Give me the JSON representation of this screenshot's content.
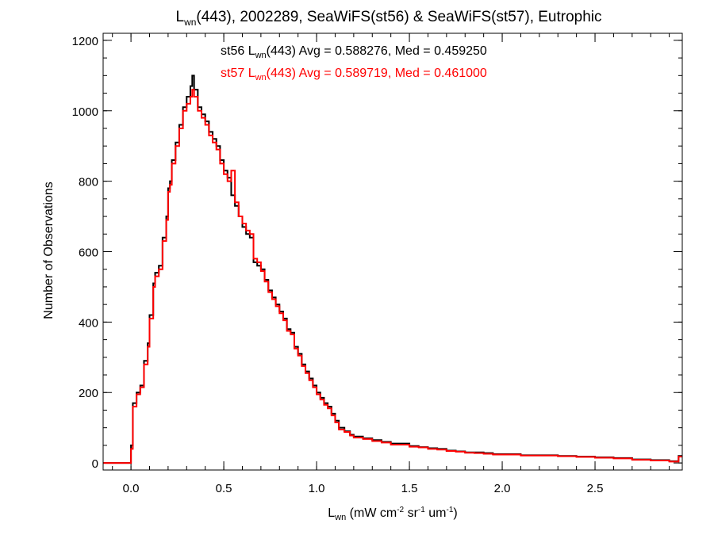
{
  "chart_data": {
    "type": "histogram",
    "title": {
      "pre": "L",
      "sub": "wn",
      "post": "(443), 2002289, SeaWiFS(st56) & SeaWiFS(st57), Eutrophic"
    },
    "xlabel": {
      "main": "L",
      "sub": "wn",
      "units_pre": " (mW cm",
      "exp1": "-2",
      "mid1": " sr",
      "exp2": "-1",
      "mid2": " um",
      "exp3": "-1",
      "end": ")"
    },
    "ylabel": "Number of Observations",
    "xlim": [
      -0.15,
      2.97
    ],
    "ylim": [
      -20,
      1220
    ],
    "xticks": [
      0.0,
      0.5,
      1.0,
      1.5,
      2.0,
      2.5
    ],
    "xtick_labels": [
      "0.0",
      "0.5",
      "1.0",
      "1.5",
      "2.0",
      "2.5"
    ],
    "yticks": [
      0,
      200,
      400,
      600,
      800,
      1000,
      1200
    ],
    "ytick_labels": [
      "0",
      "200",
      "400",
      "600",
      "800",
      "1000",
      "1200"
    ],
    "x_minor_step": 0.1,
    "y_minor_step": 50,
    "legend_placement": "top-center",
    "series": [
      {
        "name": "st56",
        "color": "#000000",
        "label": {
          "pre": "st56 L",
          "sub": "wn",
          "post": "(443) Avg = 0.588276, Med = 0.459250"
        },
        "points": [
          [
            -0.15,
            0
          ],
          [
            -0.02,
            0
          ],
          [
            0.0,
            50
          ],
          [
            0.01,
            170
          ],
          [
            0.03,
            200
          ],
          [
            0.05,
            220
          ],
          [
            0.07,
            290
          ],
          [
            0.09,
            340
          ],
          [
            0.1,
            420
          ],
          [
            0.12,
            510
          ],
          [
            0.13,
            540
          ],
          [
            0.15,
            560
          ],
          [
            0.17,
            640
          ],
          [
            0.19,
            700
          ],
          [
            0.2,
            780
          ],
          [
            0.21,
            800
          ],
          [
            0.22,
            860
          ],
          [
            0.24,
            910
          ],
          [
            0.26,
            960
          ],
          [
            0.28,
            1010
          ],
          [
            0.3,
            1040
          ],
          [
            0.32,
            1070
          ],
          [
            0.33,
            1100
          ],
          [
            0.34,
            1060
          ],
          [
            0.36,
            1010
          ],
          [
            0.38,
            990
          ],
          [
            0.4,
            970
          ],
          [
            0.42,
            940
          ],
          [
            0.44,
            920
          ],
          [
            0.46,
            900
          ],
          [
            0.48,
            860
          ],
          [
            0.5,
            830
          ],
          [
            0.52,
            810
          ],
          [
            0.54,
            760
          ],
          [
            0.56,
            730
          ],
          [
            0.58,
            700
          ],
          [
            0.6,
            670
          ],
          [
            0.62,
            650
          ],
          [
            0.64,
            640
          ],
          [
            0.66,
            570
          ],
          [
            0.68,
            560
          ],
          [
            0.7,
            550
          ],
          [
            0.72,
            520
          ],
          [
            0.74,
            490
          ],
          [
            0.76,
            470
          ],
          [
            0.78,
            450
          ],
          [
            0.8,
            430
          ],
          [
            0.82,
            410
          ],
          [
            0.84,
            380
          ],
          [
            0.86,
            370
          ],
          [
            0.88,
            330
          ],
          [
            0.9,
            310
          ],
          [
            0.92,
            280
          ],
          [
            0.94,
            260
          ],
          [
            0.96,
            240
          ],
          [
            0.98,
            220
          ],
          [
            1.0,
            200
          ],
          [
            1.02,
            185
          ],
          [
            1.04,
            170
          ],
          [
            1.06,
            160
          ],
          [
            1.08,
            140
          ],
          [
            1.1,
            120
          ],
          [
            1.12,
            100
          ],
          [
            1.15,
            90
          ],
          [
            1.18,
            80
          ],
          [
            1.2,
            75
          ],
          [
            1.25,
            70
          ],
          [
            1.3,
            65
          ],
          [
            1.35,
            60
          ],
          [
            1.4,
            55
          ],
          [
            1.45,
            55
          ],
          [
            1.5,
            48
          ],
          [
            1.55,
            45
          ],
          [
            1.6,
            42
          ],
          [
            1.65,
            40
          ],
          [
            1.7,
            35
          ],
          [
            1.75,
            33
          ],
          [
            1.8,
            30
          ],
          [
            1.85,
            30
          ],
          [
            1.9,
            28
          ],
          [
            1.95,
            25
          ],
          [
            2.0,
            25
          ],
          [
            2.1,
            22
          ],
          [
            2.2,
            22
          ],
          [
            2.3,
            20
          ],
          [
            2.4,
            18
          ],
          [
            2.5,
            16
          ],
          [
            2.6,
            14
          ],
          [
            2.7,
            10
          ],
          [
            2.8,
            8
          ],
          [
            2.9,
            5
          ],
          [
            2.95,
            20
          ]
        ]
      },
      {
        "name": "st57",
        "color": "#ff0000",
        "label": {
          "pre": "st57 L",
          "sub": "wn",
          "post": "(443) Avg = 0.589719, Med = 0.461000"
        },
        "points": [
          [
            -0.15,
            0
          ],
          [
            -0.02,
            0
          ],
          [
            0.0,
            40
          ],
          [
            0.01,
            160
          ],
          [
            0.03,
            195
          ],
          [
            0.05,
            215
          ],
          [
            0.07,
            280
          ],
          [
            0.09,
            330
          ],
          [
            0.1,
            410
          ],
          [
            0.12,
            500
          ],
          [
            0.13,
            530
          ],
          [
            0.15,
            550
          ],
          [
            0.17,
            630
          ],
          [
            0.19,
            690
          ],
          [
            0.2,
            770
          ],
          [
            0.21,
            790
          ],
          [
            0.22,
            850
          ],
          [
            0.24,
            900
          ],
          [
            0.26,
            950
          ],
          [
            0.28,
            1000
          ],
          [
            0.3,
            1020
          ],
          [
            0.32,
            1040
          ],
          [
            0.33,
            1060
          ],
          [
            0.34,
            1040
          ],
          [
            0.36,
            1000
          ],
          [
            0.38,
            980
          ],
          [
            0.4,
            960
          ],
          [
            0.42,
            930
          ],
          [
            0.44,
            910
          ],
          [
            0.46,
            890
          ],
          [
            0.48,
            850
          ],
          [
            0.5,
            820
          ],
          [
            0.52,
            800
          ],
          [
            0.54,
            830
          ],
          [
            0.56,
            740
          ],
          [
            0.58,
            700
          ],
          [
            0.6,
            680
          ],
          [
            0.62,
            660
          ],
          [
            0.64,
            650
          ],
          [
            0.66,
            580
          ],
          [
            0.68,
            570
          ],
          [
            0.7,
            545
          ],
          [
            0.72,
            515
          ],
          [
            0.74,
            485
          ],
          [
            0.76,
            465
          ],
          [
            0.78,
            445
          ],
          [
            0.8,
            425
          ],
          [
            0.82,
            405
          ],
          [
            0.84,
            375
          ],
          [
            0.86,
            365
          ],
          [
            0.88,
            325
          ],
          [
            0.9,
            305
          ],
          [
            0.92,
            275
          ],
          [
            0.94,
            255
          ],
          [
            0.96,
            235
          ],
          [
            0.98,
            215
          ],
          [
            1.0,
            195
          ],
          [
            1.02,
            180
          ],
          [
            1.04,
            165
          ],
          [
            1.06,
            155
          ],
          [
            1.08,
            135
          ],
          [
            1.1,
            115
          ],
          [
            1.12,
            95
          ],
          [
            1.15,
            88
          ],
          [
            1.18,
            78
          ],
          [
            1.2,
            72
          ],
          [
            1.25,
            68
          ],
          [
            1.3,
            62
          ],
          [
            1.35,
            58
          ],
          [
            1.4,
            52
          ],
          [
            1.45,
            52
          ],
          [
            1.5,
            46
          ],
          [
            1.55,
            44
          ],
          [
            1.6,
            40
          ],
          [
            1.65,
            38
          ],
          [
            1.7,
            34
          ],
          [
            1.75,
            32
          ],
          [
            1.8,
            29
          ],
          [
            1.85,
            28
          ],
          [
            1.9,
            26
          ],
          [
            1.95,
            24
          ],
          [
            2.0,
            24
          ],
          [
            2.1,
            21
          ],
          [
            2.2,
            21
          ],
          [
            2.3,
            19
          ],
          [
            2.4,
            17
          ],
          [
            2.5,
            15
          ],
          [
            2.6,
            13
          ],
          [
            2.7,
            9
          ],
          [
            2.8,
            7
          ],
          [
            2.9,
            4
          ],
          [
            2.95,
            18
          ]
        ]
      }
    ]
  }
}
